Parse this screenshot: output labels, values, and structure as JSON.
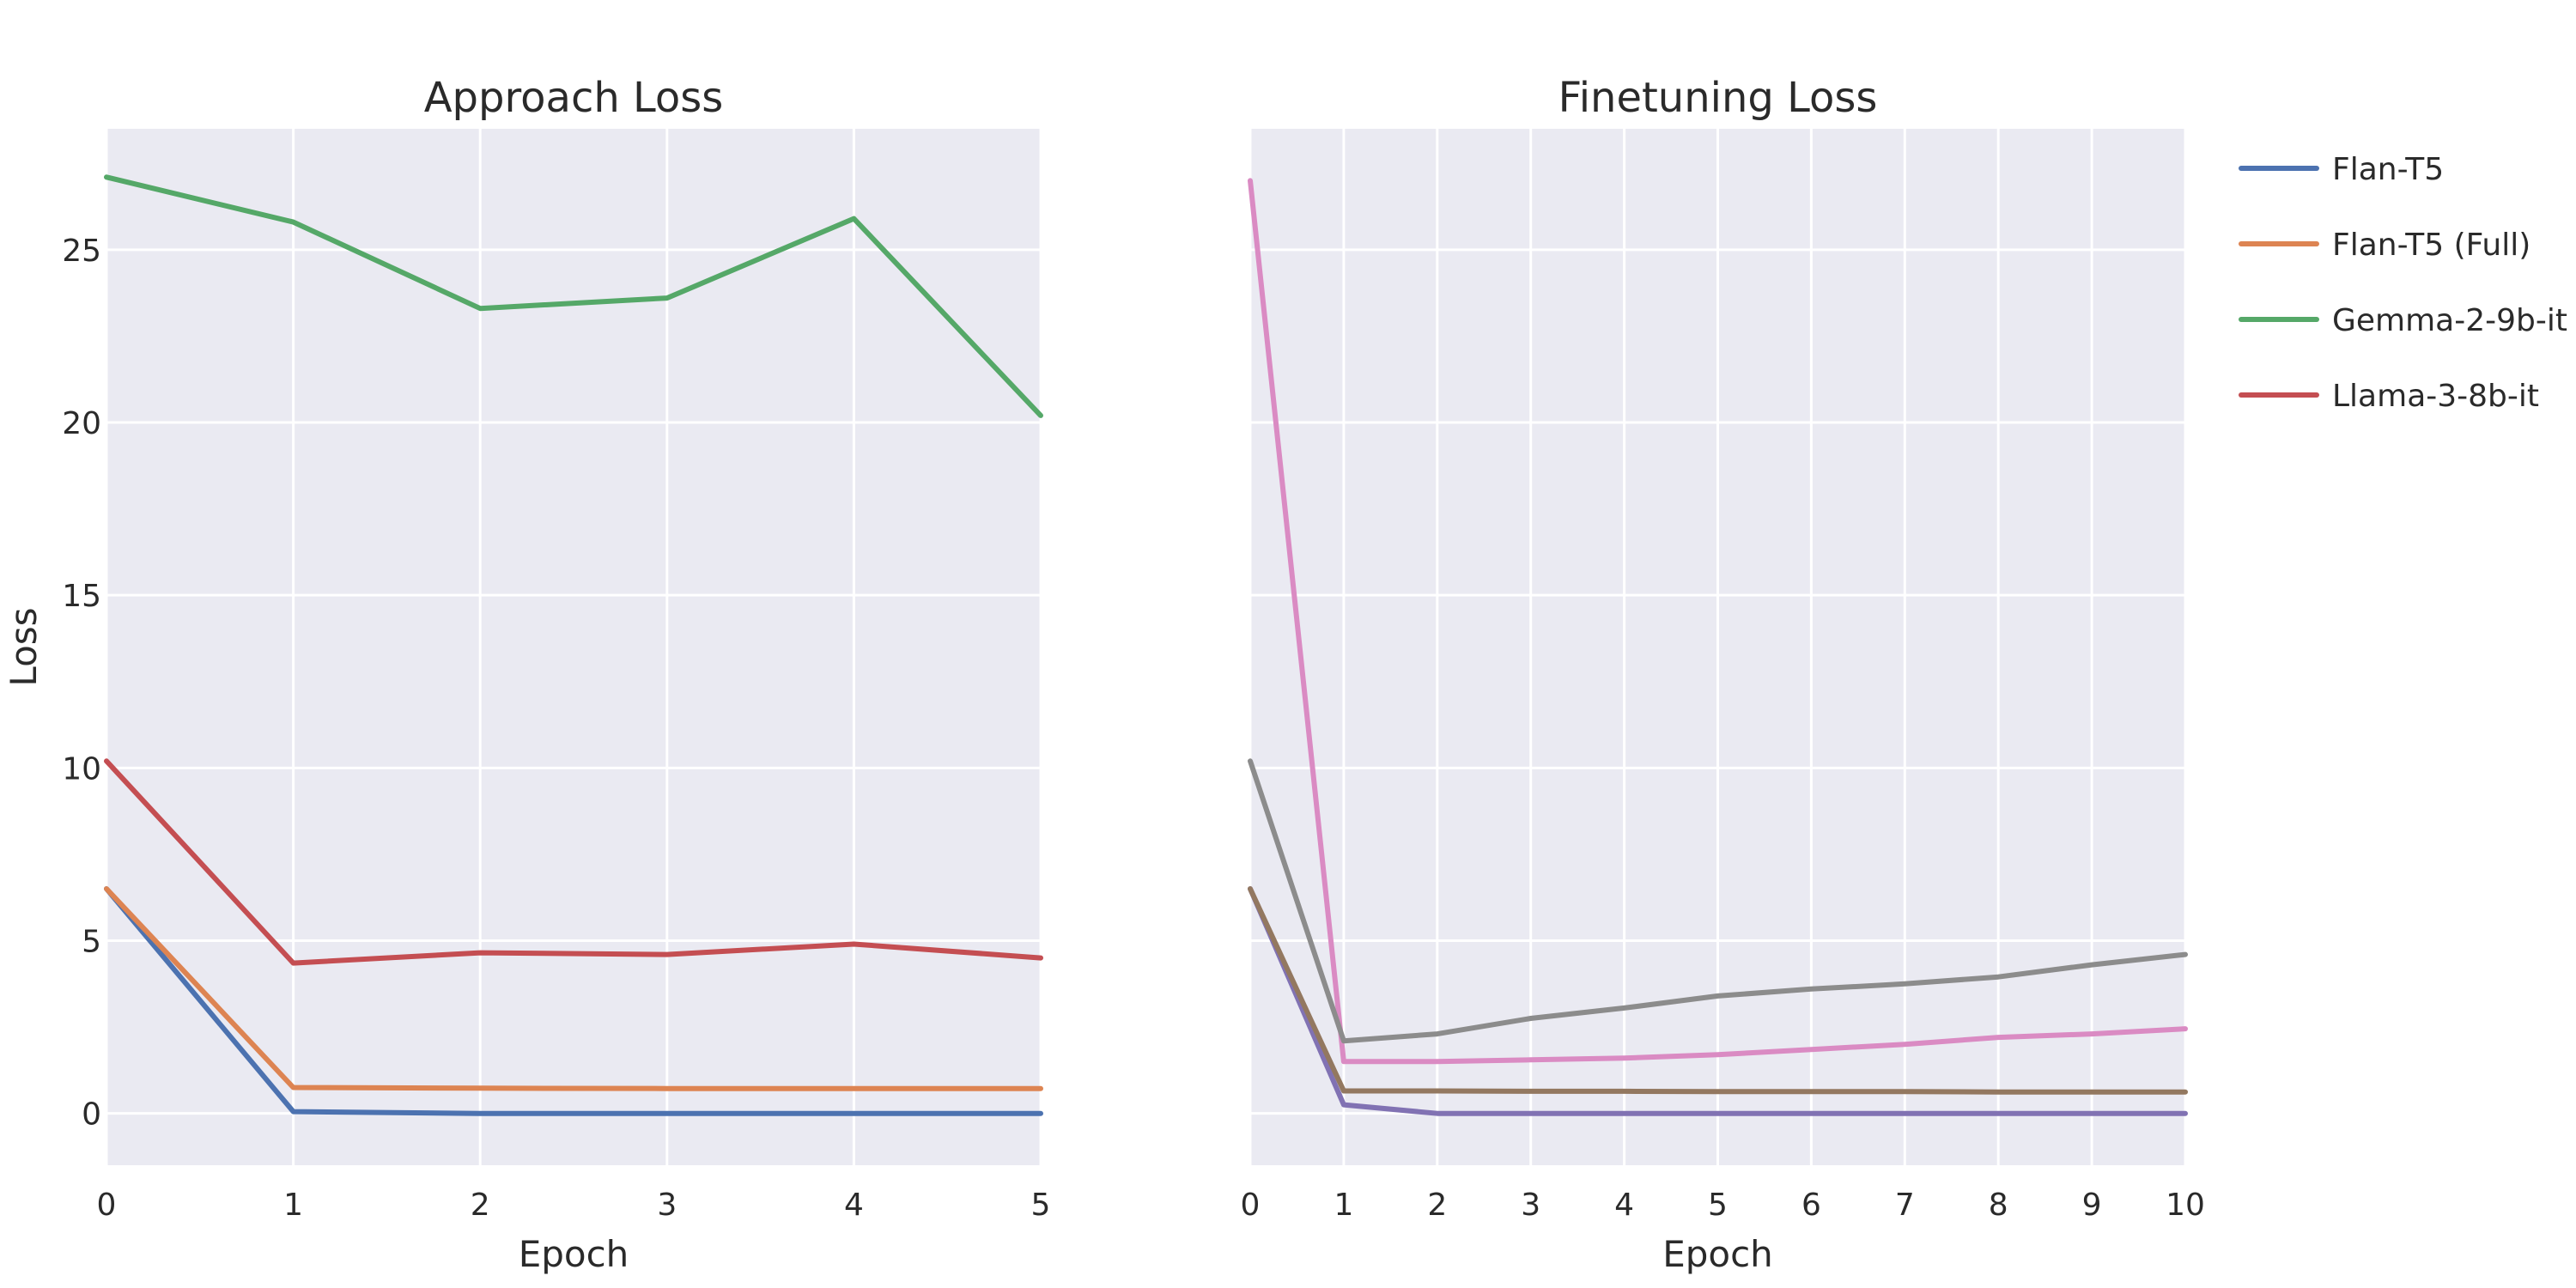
{
  "chart_data": [
    {
      "type": "line",
      "title": "Approach Loss",
      "xlabel": "Epoch",
      "ylabel": "Loss",
      "xlim": [
        0,
        5
      ],
      "ylim": [
        -1.5,
        28.5
      ],
      "xticks": [
        0,
        1,
        2,
        3,
        4,
        5
      ],
      "yticks": [
        0,
        5,
        10,
        15,
        20,
        25
      ],
      "grid": true,
      "series": [
        {
          "name": "Flan-T5",
          "color": "#4c72b0",
          "x": [
            0,
            1,
            2,
            3,
            4,
            5
          ],
          "values": [
            6.5,
            0.05,
            0.0,
            0.0,
            0.0,
            0.0
          ]
        },
        {
          "name": "Flan-T5 (Full)",
          "color": "#dd8452",
          "x": [
            0,
            1,
            2,
            3,
            4,
            5
          ],
          "values": [
            6.5,
            0.75,
            0.73,
            0.72,
            0.72,
            0.72
          ]
        },
        {
          "name": "Gemma-2-9b-it",
          "color": "#55a868",
          "x": [
            0,
            1,
            2,
            3,
            4,
            5
          ],
          "values": [
            27.1,
            25.8,
            23.3,
            23.6,
            25.9,
            20.2
          ]
        },
        {
          "name": "Llama-3-8b-it",
          "color": "#c44e52",
          "x": [
            0,
            1,
            2,
            3,
            4,
            5
          ],
          "values": [
            10.2,
            4.35,
            4.65,
            4.6,
            4.9,
            4.5
          ]
        }
      ]
    },
    {
      "type": "line",
      "title": "Finetuning Loss",
      "xlabel": "Epoch",
      "ylabel": "",
      "xlim": [
        0,
        10
      ],
      "ylim": [
        -1.5,
        28.5
      ],
      "xticks": [
        0,
        1,
        2,
        3,
        4,
        5,
        6,
        7,
        8,
        9,
        10
      ],
      "yticks": [
        0,
        5,
        10,
        15,
        20,
        25
      ],
      "grid": true,
      "series": [
        {
          "color": "#8172b3",
          "x": [
            0,
            1,
            2,
            3,
            4,
            5,
            6,
            7,
            8,
            9,
            10
          ],
          "values": [
            6.5,
            0.25,
            0.0,
            0.0,
            0.0,
            0.0,
            0.0,
            0.0,
            0.0,
            0.0,
            0.0
          ]
        },
        {
          "color": "#937860",
          "x": [
            0,
            1,
            2,
            3,
            4,
            5,
            6,
            7,
            8,
            9,
            10
          ],
          "values": [
            6.5,
            0.65,
            0.65,
            0.64,
            0.64,
            0.63,
            0.63,
            0.63,
            0.62,
            0.62,
            0.62
          ]
        },
        {
          "color": "#da8bc3",
          "x": [
            0,
            1,
            2,
            3,
            4,
            5,
            6,
            7,
            8,
            9,
            10
          ],
          "values": [
            27.0,
            1.5,
            1.5,
            1.55,
            1.6,
            1.7,
            1.85,
            2.0,
            2.2,
            2.3,
            2.45
          ]
        },
        {
          "color": "#8c8c8c",
          "x": [
            0,
            1,
            2,
            3,
            4,
            5,
            6,
            7,
            8,
            9,
            10
          ],
          "values": [
            10.2,
            2.1,
            2.3,
            2.75,
            3.05,
            3.4,
            3.6,
            3.75,
            3.95,
            4.3,
            4.6
          ]
        }
      ]
    }
  ],
  "legend": {
    "placement": "right",
    "entries": [
      {
        "label": "Flan-T5",
        "color": "#4c72b0"
      },
      {
        "label": "Flan-T5 (Full)",
        "color": "#dd8452"
      },
      {
        "label": "Gemma-2-9b-it",
        "color": "#55a868"
      },
      {
        "label": "Llama-3-8b-it",
        "color": "#c44e52"
      }
    ]
  },
  "colors": {
    "plot_background": "#eaeaf2",
    "grid": "#ffffff"
  }
}
